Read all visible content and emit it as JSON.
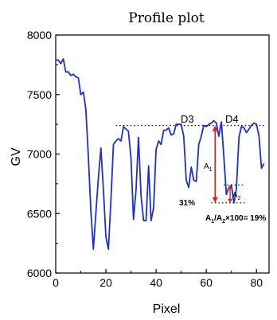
{
  "chart_data": {
    "type": "line",
    "title": "Profile plot",
    "xlabel": "Pixel",
    "ylabel": "GV",
    "xlim": [
      0,
      85
    ],
    "ylim": [
      6000,
      8000
    ],
    "x_ticks": [
      0,
      20,
      40,
      60,
      80
    ],
    "y_ticks": [
      6000,
      6500,
      7000,
      7500,
      8000
    ],
    "x_tick_labels": [
      "0",
      "20",
      "40",
      "60",
      "80"
    ],
    "y_tick_labels": [
      "6000",
      "6500",
      "7000",
      "7500",
      "8000"
    ],
    "grid": false,
    "line_color": "#1a2fd6",
    "arrow_color": "#e02020",
    "series": [
      {
        "x": [
          0,
          1,
          2,
          3,
          4,
          5,
          6,
          7,
          8,
          9,
          10,
          11,
          12,
          13,
          14,
          15,
          16,
          17,
          18,
          19,
          20,
          21,
          22,
          23,
          24,
          25,
          26,
          27,
          28,
          29,
          30,
          31,
          32,
          33,
          34,
          35,
          36,
          37,
          38,
          39,
          40,
          41,
          42,
          43,
          44,
          45,
          46,
          47,
          48,
          49,
          50,
          51,
          52,
          53,
          54,
          55,
          56,
          57,
          58,
          59,
          60,
          61,
          62,
          63,
          64,
          65,
          66,
          67,
          68,
          69,
          70,
          71,
          72,
          73,
          74,
          75,
          76,
          77,
          78,
          79,
          80,
          81,
          82,
          83
        ],
        "y": [
          7790,
          7790,
          7760,
          7800,
          7690,
          7690,
          7660,
          7670,
          7650,
          7640,
          7500,
          7520,
          7380,
          6980,
          6530,
          6200,
          6500,
          6800,
          7050,
          6700,
          6300,
          6200,
          6620,
          7080,
          7110,
          7130,
          7110,
          7230,
          7210,
          7190,
          6960,
          6450,
          6700,
          7140,
          6650,
          6440,
          6440,
          6900,
          6440,
          6550,
          7040,
          7110,
          7080,
          7200,
          7200,
          7220,
          7160,
          7170,
          7250,
          7250,
          7250,
          7150,
          6780,
          6720,
          6890,
          6780,
          6770,
          7080,
          7150,
          7240,
          7230,
          7250,
          7260,
          7280,
          7260,
          7150,
          7270,
          6980,
          6660,
          6720,
          6740,
          6590,
          6710,
          7140,
          7230,
          7220,
          7180,
          7210,
          7240,
          7260,
          7250,
          7150,
          6880,
          6920
        ]
      }
    ],
    "reference_line_y": 7240,
    "annotations": {
      "d3": "D3",
      "d4": "D4",
      "a1": "A",
      "a1_sub": "1",
      "a2": "A",
      "a2_sub": "2",
      "pct31": "31%",
      "formula_a": "A",
      "formula_a_sub1": "1",
      "formula_slash": "/A",
      "formula_a_sub2": "2",
      "formula_rest": "×100= 19%"
    }
  }
}
